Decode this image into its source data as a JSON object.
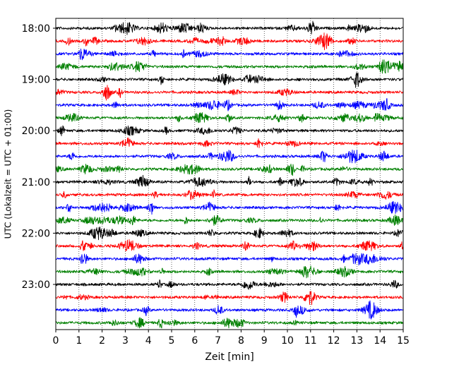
{
  "chart_data": {
    "type": "line",
    "title": "",
    "xlabel": "Zeit  [min]",
    "ylabel": "UTC (Lokalzeit = UTC + 01:00)",
    "xlim": [
      0,
      15
    ],
    "x_ticks": [
      0,
      1,
      2,
      3,
      4,
      5,
      6,
      7,
      8,
      9,
      10,
      11,
      12,
      13,
      14,
      15
    ],
    "y_ticks": [
      "18:00",
      "19:00",
      "20:00",
      "21:00",
      "22:00",
      "23:00"
    ],
    "grid": "vertical-dotted",
    "trace_interval_min": 15,
    "trace_colors": [
      "#000000",
      "#ff0000",
      "#0000ff",
      "#008000"
    ],
    "traces": [
      {
        "label": "18:00",
        "color": "#000000"
      },
      {
        "label": "18:15",
        "color": "#ff0000"
      },
      {
        "label": "18:30",
        "color": "#0000ff"
      },
      {
        "label": "18:45",
        "color": "#008000"
      },
      {
        "label": "19:00",
        "color": "#000000"
      },
      {
        "label": "19:15",
        "color": "#ff0000"
      },
      {
        "label": "19:30",
        "color": "#0000ff"
      },
      {
        "label": "19:45",
        "color": "#008000"
      },
      {
        "label": "20:00",
        "color": "#000000"
      },
      {
        "label": "20:15",
        "color": "#ff0000"
      },
      {
        "label": "20:30",
        "color": "#0000ff"
      },
      {
        "label": "20:45",
        "color": "#008000"
      },
      {
        "label": "21:00",
        "color": "#000000"
      },
      {
        "label": "21:15",
        "color": "#ff0000"
      },
      {
        "label": "21:30",
        "color": "#0000ff"
      },
      {
        "label": "21:45",
        "color": "#008000"
      },
      {
        "label": "22:00",
        "color": "#000000"
      },
      {
        "label": "22:15",
        "color": "#ff0000"
      },
      {
        "label": "22:30",
        "color": "#0000ff"
      },
      {
        "label": "22:45",
        "color": "#008000"
      },
      {
        "label": "23:00",
        "color": "#000000"
      },
      {
        "label": "23:15",
        "color": "#ff0000"
      },
      {
        "label": "23:30",
        "color": "#0000ff"
      },
      {
        "label": "23:45",
        "color": "#008000"
      }
    ]
  }
}
